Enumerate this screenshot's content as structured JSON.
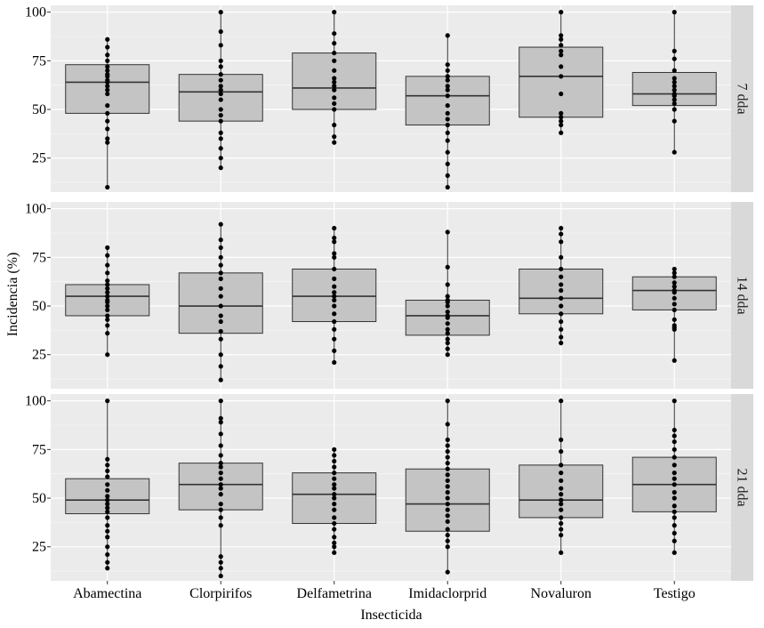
{
  "chart_data": {
    "type": "box",
    "xlabel": "Insecticida",
    "ylabel": "Incidencia (%)",
    "categories": [
      "Abamectina",
      "Clorpirifos",
      "Delfametrina",
      "Imidaclorprid",
      "Novaluron",
      "Testigo"
    ],
    "y_ticks": [
      25,
      50,
      75,
      100
    ],
    "grid": true,
    "colors": {
      "panel_bg": "#ebebeb",
      "strip_bg": "#d9d9d9",
      "grid": "#ffffff",
      "box_fill": "#c4c4c4",
      "box_line": "#333333",
      "point": "#000000"
    },
    "panels": [
      {
        "label": "7 dda",
        "ylim": [
          7.5,
          103.5
        ],
        "boxes": [
          {
            "category": "Abamectina",
            "q1": 48,
            "median": 64,
            "q3": 73,
            "whisker_low": 10,
            "whisker_high": 86,
            "points": [
              10,
              33,
              35,
              40,
              44,
              48,
              52,
              58,
              60,
              62,
              64,
              65,
              67,
              68,
              70,
              72,
              75,
              78,
              82,
              86
            ]
          },
          {
            "category": "Clorpirifos",
            "q1": 44,
            "median": 59,
            "q3": 68,
            "whisker_low": 20,
            "whisker_high": 100,
            "points": [
              20,
              25,
              30,
              35,
              38,
              44,
              47,
              50,
              55,
              58,
              60,
              62,
              65,
              68,
              72,
              75,
              83,
              90,
              100
            ]
          },
          {
            "category": "Delfametrina",
            "q1": 50,
            "median": 61,
            "q3": 79,
            "whisker_low": 33,
            "whisker_high": 100,
            "points": [
              33,
              36,
              42,
              50,
              53,
              56,
              60,
              62,
              64,
              66,
              70,
              75,
              79,
              84,
              89,
              100
            ]
          },
          {
            "category": "Imidaclorprid",
            "q1": 42,
            "median": 57,
            "q3": 67,
            "whisker_low": 10,
            "whisker_high": 88,
            "points": [
              10,
              16,
              22,
              28,
              34,
              38,
              42,
              45,
              48,
              52,
              57,
              60,
              62,
              65,
              67,
              70,
              73,
              88
            ]
          },
          {
            "category": "Novaluron",
            "q1": 46,
            "median": 67,
            "q3": 82,
            "whisker_low": 38,
            "whisker_high": 100,
            "points": [
              38,
              42,
              44,
              46,
              48,
              58,
              67,
              72,
              78,
              80,
              83,
              86,
              88,
              100
            ]
          },
          {
            "category": "Testigo",
            "q1": 52,
            "median": 58,
            "q3": 69,
            "whisker_low": 28,
            "whisker_high": 100,
            "points": [
              28,
              44,
              50,
              53,
              55,
              57,
              58,
              60,
              62,
              64,
              66,
              70,
              76,
              80,
              100
            ]
          }
        ]
      },
      {
        "label": "14 dda",
        "ylim": [
          7.5,
          103.5
        ],
        "boxes": [
          {
            "category": "Abamectina",
            "q1": 45,
            "median": 55,
            "q3": 61,
            "whisker_low": 25,
            "whisker_high": 80,
            "points": [
              25,
              36,
              40,
              43,
              45,
              48,
              50,
              52,
              53,
              55,
              57,
              59,
              61,
              63,
              67,
              71,
              76,
              80
            ]
          },
          {
            "category": "Clorpirifos",
            "q1": 36,
            "median": 50,
            "q3": 67,
            "whisker_low": 12,
            "whisker_high": 92,
            "points": [
              12,
              19,
              25,
              33,
              37,
              42,
              45,
              50,
              55,
              59,
              64,
              67,
              71,
              75,
              80,
              84,
              92
            ]
          },
          {
            "category": "Delfametrina",
            "q1": 42,
            "median": 55,
            "q3": 69,
            "whisker_low": 21,
            "whisker_high": 90,
            "points": [
              21,
              27,
              33,
              38,
              42,
              46,
              50,
              53,
              55,
              57,
              60,
              64,
              69,
              75,
              77,
              83,
              85,
              90
            ]
          },
          {
            "category": "Imidaclorprid",
            "q1": 35,
            "median": 45,
            "q3": 53,
            "whisker_low": 25,
            "whisker_high": 88,
            "points": [
              25,
              28,
              31,
              33,
              36,
              38,
              41,
              44,
              45,
              47,
              50,
              52,
              53,
              55,
              61,
              70,
              88
            ]
          },
          {
            "category": "Novaluron",
            "q1": 46,
            "median": 54,
            "q3": 69,
            "whisker_low": 31,
            "whisker_high": 90,
            "points": [
              31,
              34,
              38,
              42,
              46,
              50,
              54,
              58,
              61,
              65,
              69,
              75,
              83,
              87,
              90
            ]
          },
          {
            "category": "Testigo",
            "q1": 48,
            "median": 58,
            "q3": 65,
            "whisker_low": 22,
            "whisker_high": 69,
            "points": [
              22,
              38,
              39,
              40,
              43,
              48,
              51,
              54,
              57,
              58,
              60,
              62,
              65,
              67,
              69
            ]
          }
        ]
      },
      {
        "label": "21 dda",
        "ylim": [
          7.5,
          103.5
        ],
        "boxes": [
          {
            "category": "Abamectina",
            "q1": 42,
            "median": 49,
            "q3": 60,
            "whisker_low": 14,
            "whisker_high": 100,
            "points": [
              14,
              17,
              21,
              25,
              30,
              33,
              36,
              40,
              43,
              45,
              47,
              49,
              51,
              54,
              57,
              61,
              64,
              67,
              70,
              100
            ]
          },
          {
            "category": "Clorpirifos",
            "q1": 44,
            "median": 57,
            "q3": 68,
            "whisker_low": 10,
            "whisker_high": 100,
            "points": [
              10,
              14,
              17,
              20,
              36,
              40,
              44,
              47,
              52,
              55,
              57,
              60,
              63,
              66,
              68,
              72,
              77,
              83,
              89,
              91,
              100
            ]
          },
          {
            "category": "Delfametrina",
            "q1": 37,
            "median": 52,
            "q3": 63,
            "whisker_low": 22,
            "whisker_high": 75,
            "points": [
              22,
              25,
              27,
              30,
              34,
              37,
              40,
              44,
              47,
              50,
              52,
              55,
              57,
              60,
              63,
              66,
              69,
              72,
              75
            ]
          },
          {
            "category": "Imidaclorprid",
            "q1": 33,
            "median": 47,
            "q3": 65,
            "whisker_low": 12,
            "whisker_high": 100,
            "points": [
              12,
              25,
              28,
              31,
              34,
              38,
              41,
              44,
              47,
              50,
              53,
              56,
              59,
              62,
              65,
              68,
              71,
              74,
              77,
              80,
              88,
              100
            ]
          },
          {
            "category": "Novaluron",
            "q1": 40,
            "median": 49,
            "q3": 67,
            "whisker_low": 22,
            "whisker_high": 100,
            "points": [
              22,
              31,
              34,
              37,
              40,
              44,
              47,
              49,
              52,
              55,
              59,
              63,
              67,
              74,
              80,
              100
            ]
          },
          {
            "category": "Testigo",
            "q1": 43,
            "median": 57,
            "q3": 71,
            "whisker_low": 22,
            "whisker_high": 100,
            "points": [
              22,
              28,
              32,
              36,
              40,
              43,
              46,
              50,
              53,
              57,
              60,
              63,
              67,
              71,
              75,
              79,
              82,
              85,
              100
            ]
          }
        ]
      }
    ]
  }
}
